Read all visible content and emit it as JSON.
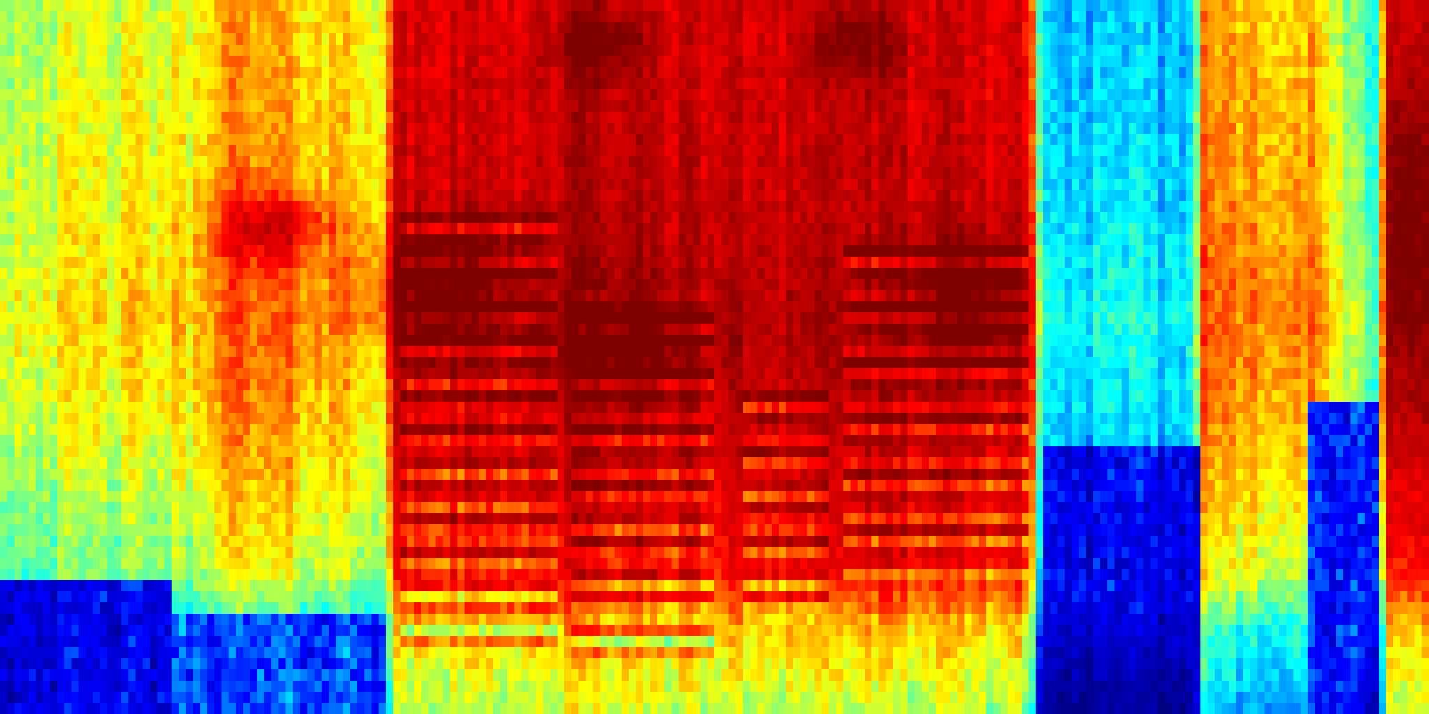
{
  "chart_data": {
    "type": "heatmap",
    "title": "",
    "xlabel": "",
    "ylabel": "",
    "colormap": "jet",
    "colormap_stops": [
      "#000080",
      "#0000ff",
      "#00ffff",
      "#ffff00",
      "#ff0000",
      "#800000"
    ],
    "grid": false,
    "legend": "none",
    "x_range": [
      0,
      1
    ],
    "y_range": [
      0,
      1
    ],
    "value_range": [
      0,
      1
    ],
    "columns": 200,
    "rows": 64,
    "column_profile": [
      {
        "x": 0.0,
        "level": 0.52
      },
      {
        "x": 0.14,
        "level": 0.56
      },
      {
        "x": 0.15,
        "level": 0.66
      },
      {
        "x": 0.27,
        "level": 0.58
      },
      {
        "x": 0.275,
        "level": 0.82
      },
      {
        "x": 0.39,
        "level": 0.85
      },
      {
        "x": 0.395,
        "level": 0.88
      },
      {
        "x": 0.5,
        "level": 0.84
      },
      {
        "x": 0.58,
        "level": 0.86
      },
      {
        "x": 0.72,
        "level": 0.82
      },
      {
        "x": 0.73,
        "level": 0.32
      },
      {
        "x": 0.835,
        "level": 0.32
      },
      {
        "x": 0.84,
        "level": 0.66
      },
      {
        "x": 0.92,
        "level": 0.62
      },
      {
        "x": 0.965,
        "level": 0.35
      },
      {
        "x": 0.97,
        "level": 0.85
      },
      {
        "x": 1.0,
        "level": 0.88
      }
    ],
    "row_profile": [
      {
        "y": 0.0,
        "offset": 0.02
      },
      {
        "y": 0.3,
        "offset": 0.05
      },
      {
        "y": 0.45,
        "offset": 0.08
      },
      {
        "y": 0.6,
        "offset": 0.04
      },
      {
        "y": 0.8,
        "offset": -0.05
      },
      {
        "y": 0.88,
        "offset": -0.2
      },
      {
        "y": 1.0,
        "offset": -0.3
      }
    ],
    "harmonic_segments": [
      {
        "x_start": 0.28,
        "x_end": 0.39,
        "y_start": 0.3,
        "y_end": 0.9,
        "bands": 14
      },
      {
        "x_start": 0.4,
        "x_end": 0.5,
        "y_start": 0.4,
        "y_end": 0.92,
        "bands": 13
      },
      {
        "x_start": 0.52,
        "x_end": 0.58,
        "y_start": 0.55,
        "y_end": 0.88,
        "bands": 8
      },
      {
        "x_start": 0.59,
        "x_end": 0.72,
        "y_start": 0.35,
        "y_end": 0.82,
        "bands": 12
      }
    ],
    "formant_blobs": [
      {
        "x": 0.19,
        "y": 0.32,
        "rx": 0.04,
        "ry": 0.05,
        "boost": 0.18
      },
      {
        "x": 0.31,
        "y": 0.4,
        "rx": 0.05,
        "ry": 0.08,
        "boost": 0.18
      },
      {
        "x": 0.42,
        "y": 0.06,
        "rx": 0.03,
        "ry": 0.05,
        "boost": 0.14
      },
      {
        "x": 0.44,
        "y": 0.48,
        "rx": 0.05,
        "ry": 0.07,
        "boost": 0.16
      },
      {
        "x": 0.6,
        "y": 0.06,
        "rx": 0.03,
        "ry": 0.05,
        "boost": 0.14
      },
      {
        "x": 0.68,
        "y": 0.42,
        "rx": 0.04,
        "ry": 0.08,
        "boost": 0.17
      },
      {
        "x": 0.985,
        "y": 0.3,
        "rx": 0.015,
        "ry": 0.2,
        "boost": 0.15
      }
    ],
    "low_energy_regions": [
      {
        "x_start": 0.0,
        "x_end": 0.12,
        "y_start": 0.82,
        "y_end": 1.0,
        "level": 0.16
      },
      {
        "x_start": 0.1,
        "x_end": 0.27,
        "y_start": 0.86,
        "y_end": 1.0,
        "level": 0.25
      },
      {
        "x_start": 0.73,
        "x_end": 0.84,
        "y_start": 0.62,
        "y_end": 1.0,
        "level": 0.16
      },
      {
        "x_start": 0.915,
        "x_end": 0.965,
        "y_start": 0.56,
        "y_end": 1.0,
        "level": 0.2
      }
    ],
    "noise_amplitude": 0.08,
    "noise_seed": 42
  }
}
